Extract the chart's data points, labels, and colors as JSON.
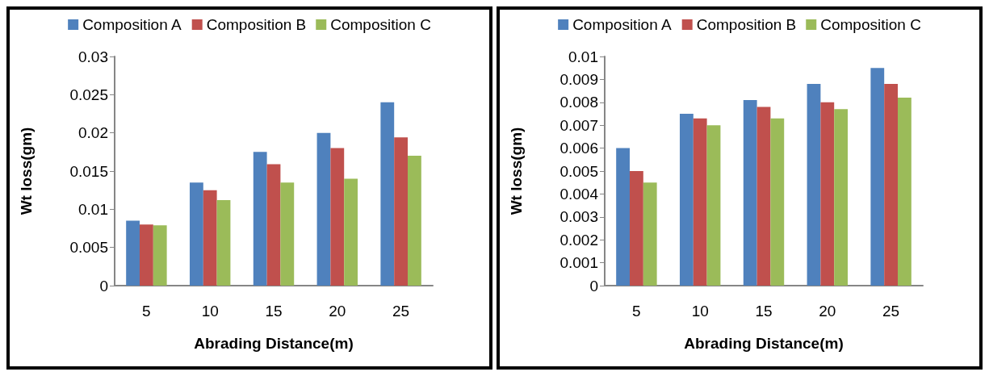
{
  "chart_data": [
    {
      "type": "bar",
      "xlabel": "Abrading Distance(m)",
      "ylabel": "Wt loss(gm)",
      "categories": [
        "5",
        "10",
        "15",
        "20",
        "25"
      ],
      "series": [
        {
          "name": "Composition A",
          "color": "#4f81bd",
          "values": [
            0.0085,
            0.0135,
            0.0175,
            0.02,
            0.024
          ]
        },
        {
          "name": "Composition B",
          "color": "#c0504d",
          "values": [
            0.008,
            0.0125,
            0.0159,
            0.018,
            0.0194
          ]
        },
        {
          "name": "Composition C",
          "color": "#9bbb59",
          "values": [
            0.0079,
            0.0112,
            0.0135,
            0.014,
            0.017
          ]
        }
      ],
      "ylim": [
        0,
        0.03
      ],
      "yticks": [
        0,
        0.005,
        0.01,
        0.015,
        0.02,
        0.025,
        0.03
      ],
      "grid": false,
      "legend": "top"
    },
    {
      "type": "bar",
      "xlabel": "Abrading Distance(m)",
      "ylabel": "Wt loss(gm)",
      "categories": [
        "5",
        "10",
        "15",
        "20",
        "25"
      ],
      "series": [
        {
          "name": "Composition A",
          "color": "#4f81bd",
          "values": [
            0.006,
            0.0075,
            0.0081,
            0.0088,
            0.0095
          ]
        },
        {
          "name": "Composition B",
          "color": "#c0504d",
          "values": [
            0.005,
            0.0073,
            0.0078,
            0.008,
            0.0088
          ]
        },
        {
          "name": "Composition C",
          "color": "#9bbb59",
          "values": [
            0.0045,
            0.007,
            0.0073,
            0.0077,
            0.0082
          ]
        }
      ],
      "ylim": [
        0,
        0.01
      ],
      "yticks": [
        0,
        0.001,
        0.002,
        0.003,
        0.004,
        0.005,
        0.006,
        0.007,
        0.008,
        0.009,
        0.01
      ],
      "grid": false,
      "legend": "top"
    }
  ]
}
